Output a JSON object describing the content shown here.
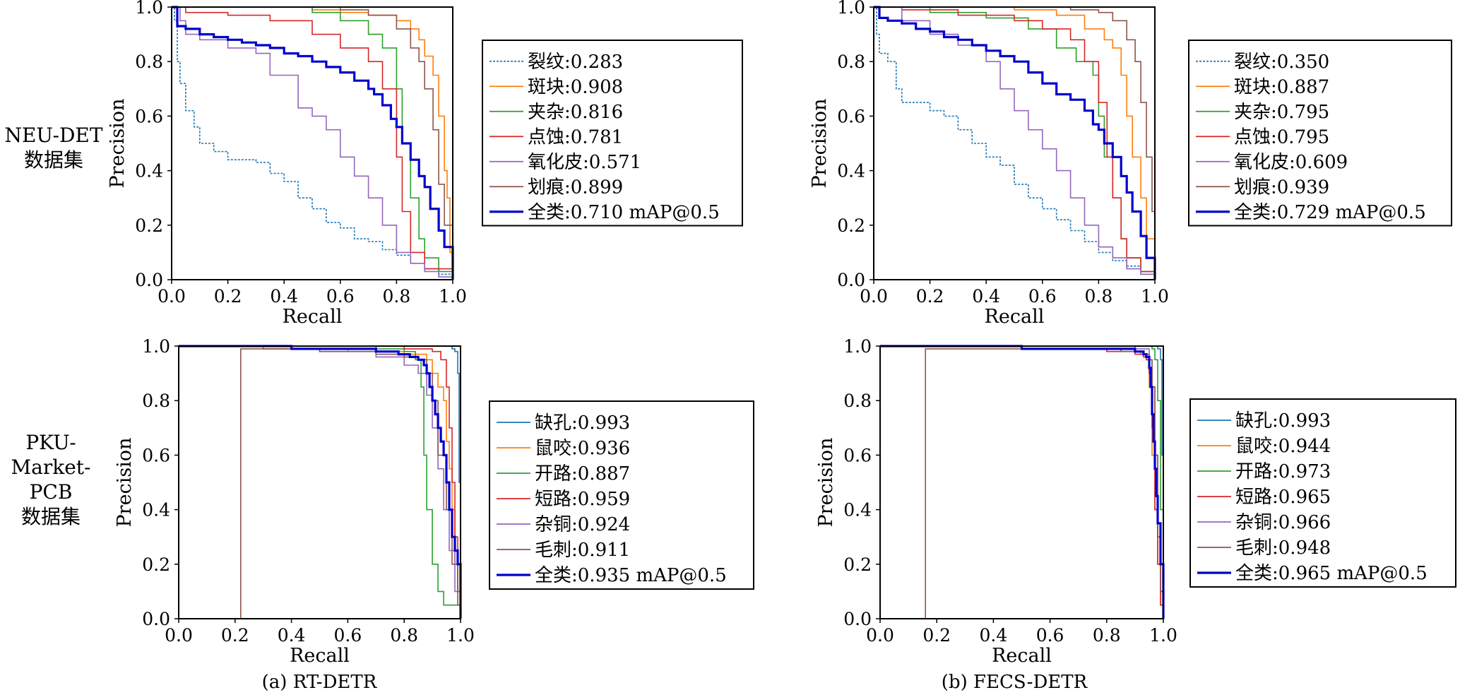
{
  "row_labels": [
    [
      "NEU-DET",
      "数据集"
    ],
    [
      "PKU-",
      "Market-",
      "PCB",
      "数据集"
    ]
  ],
  "captions": [
    "(a) RT-DETR",
    "(b) FECS-DETR"
  ],
  "chart_data": [
    {
      "type": "line",
      "xlabel": "Recall",
      "ylabel": "Precision",
      "xlim": [
        0,
        1
      ],
      "ylim": [
        0,
        1
      ],
      "ticks": [
        "0.0",
        "0.2",
        "0.4",
        "0.6",
        "0.8",
        "1.0"
      ],
      "grid": false,
      "legend": "right",
      "series": [
        {
          "name": "裂纹:0.283",
          "color": "#1f77b4",
          "dashed": true,
          "x": [
            0,
            0.01,
            0.02,
            0.03,
            0.05,
            0.08,
            0.1,
            0.15,
            0.2,
            0.3,
            0.35,
            0.4,
            0.45,
            0.5,
            0.55,
            0.6,
            0.65,
            0.7,
            0.75,
            0.8,
            0.85,
            0.9,
            0.95,
            1.0
          ],
          "y": [
            1.0,
            0.95,
            0.8,
            0.72,
            0.62,
            0.56,
            0.5,
            0.47,
            0.44,
            0.43,
            0.39,
            0.36,
            0.3,
            0.26,
            0.21,
            0.19,
            0.15,
            0.14,
            0.11,
            0.09,
            0.06,
            0.04,
            0.02,
            0.0
          ]
        },
        {
          "name": "斑块:0.908",
          "color": "#ff7f0e",
          "x": [
            0,
            0.25,
            0.5,
            0.6,
            0.7,
            0.8,
            0.85,
            0.88,
            0.9,
            0.93,
            0.95,
            0.97,
            0.98,
            0.99,
            1.0
          ],
          "y": [
            1.0,
            1.0,
            0.99,
            0.98,
            0.97,
            0.95,
            0.92,
            0.88,
            0.82,
            0.75,
            0.6,
            0.4,
            0.3,
            0.1,
            0.0
          ]
        },
        {
          "name": "夹杂:0.816",
          "color": "#2ca02c",
          "x": [
            0,
            0.3,
            0.5,
            0.6,
            0.7,
            0.75,
            0.8,
            0.82,
            0.85,
            0.88,
            0.9,
            0.95,
            1.0
          ],
          "y": [
            1.0,
            1.0,
            0.98,
            0.95,
            0.9,
            0.85,
            0.7,
            0.5,
            0.3,
            0.15,
            0.08,
            0.03,
            0.0
          ]
        },
        {
          "name": "点蚀:0.781",
          "color": "#d62728",
          "x": [
            0,
            0.05,
            0.2,
            0.35,
            0.5,
            0.6,
            0.7,
            0.75,
            0.8,
            0.82,
            0.85,
            0.9,
            1.0
          ],
          "y": [
            1.0,
            0.98,
            0.97,
            0.95,
            0.9,
            0.85,
            0.8,
            0.7,
            0.45,
            0.25,
            0.1,
            0.04,
            0.0
          ]
        },
        {
          "name": "氧化皮:0.571",
          "color": "#9467bd",
          "x": [
            0,
            0.03,
            0.05,
            0.1,
            0.2,
            0.3,
            0.35,
            0.45,
            0.5,
            0.55,
            0.6,
            0.65,
            0.7,
            0.75,
            0.8,
            0.85,
            0.9,
            0.95,
            1.0
          ],
          "y": [
            1.0,
            0.95,
            0.9,
            0.88,
            0.85,
            0.83,
            0.75,
            0.63,
            0.6,
            0.55,
            0.45,
            0.38,
            0.3,
            0.2,
            0.1,
            0.06,
            0.03,
            0.01,
            0.0
          ]
        },
        {
          "name": "划痕:0.899",
          "color": "#8c564b",
          "x": [
            0,
            0.4,
            0.6,
            0.7,
            0.8,
            0.85,
            0.88,
            0.9,
            0.93,
            0.95,
            0.97,
            1.0
          ],
          "y": [
            1.0,
            1.0,
            0.99,
            0.97,
            0.92,
            0.85,
            0.8,
            0.7,
            0.55,
            0.35,
            0.2,
            0.0
          ]
        },
        {
          "name": "全类:0.710 mAP@0.5",
          "color": "#0000cc",
          "bold": true,
          "x": [
            0,
            0.02,
            0.05,
            0.1,
            0.15,
            0.2,
            0.25,
            0.3,
            0.35,
            0.4,
            0.45,
            0.5,
            0.55,
            0.6,
            0.65,
            0.7,
            0.72,
            0.75,
            0.78,
            0.8,
            0.82,
            0.85,
            0.88,
            0.9,
            0.92,
            0.95,
            0.97,
            1.0
          ],
          "y": [
            1.0,
            0.93,
            0.92,
            0.9,
            0.89,
            0.88,
            0.87,
            0.86,
            0.85,
            0.83,
            0.82,
            0.8,
            0.78,
            0.76,
            0.73,
            0.7,
            0.68,
            0.64,
            0.59,
            0.56,
            0.5,
            0.44,
            0.38,
            0.34,
            0.26,
            0.18,
            0.12,
            0.0
          ]
        }
      ]
    },
    {
      "type": "line",
      "xlabel": "Recall",
      "ylabel": "Precision",
      "xlim": [
        0,
        1
      ],
      "ylim": [
        0,
        1
      ],
      "ticks": [
        "0.0",
        "0.2",
        "0.4",
        "0.6",
        "0.8",
        "1.0"
      ],
      "grid": false,
      "legend": "right",
      "series": [
        {
          "name": "裂纹:0.350",
          "color": "#1f77b4",
          "dashed": true,
          "x": [
            0,
            0.01,
            0.02,
            0.05,
            0.08,
            0.1,
            0.15,
            0.2,
            0.25,
            0.3,
            0.35,
            0.4,
            0.45,
            0.5,
            0.55,
            0.6,
            0.65,
            0.7,
            0.75,
            0.8,
            0.85,
            0.9,
            0.95,
            1.0
          ],
          "y": [
            1.0,
            0.9,
            0.83,
            0.8,
            0.7,
            0.65,
            0.65,
            0.62,
            0.6,
            0.55,
            0.5,
            0.45,
            0.42,
            0.35,
            0.3,
            0.26,
            0.22,
            0.18,
            0.14,
            0.1,
            0.07,
            0.05,
            0.02,
            0.0
          ]
        },
        {
          "name": "斑块:0.887",
          "color": "#ff7f0e",
          "x": [
            0,
            0.3,
            0.5,
            0.65,
            0.75,
            0.82,
            0.85,
            0.88,
            0.9,
            0.92,
            0.95,
            0.97,
            1.0
          ],
          "y": [
            1.0,
            1.0,
            0.99,
            0.97,
            0.92,
            0.88,
            0.85,
            0.75,
            0.6,
            0.45,
            0.3,
            0.15,
            0.0
          ]
        },
        {
          "name": "夹杂:0.795",
          "color": "#2ca02c",
          "x": [
            0,
            0.2,
            0.4,
            0.55,
            0.65,
            0.72,
            0.78,
            0.8,
            0.82,
            0.85,
            0.88,
            0.9,
            0.95,
            1.0
          ],
          "y": [
            1.0,
            0.98,
            0.96,
            0.92,
            0.85,
            0.8,
            0.75,
            0.6,
            0.45,
            0.3,
            0.15,
            0.08,
            0.03,
            0.0
          ]
        },
        {
          "name": "点蚀:0.795",
          "color": "#d62728",
          "x": [
            0,
            0.1,
            0.3,
            0.5,
            0.6,
            0.7,
            0.75,
            0.8,
            0.83,
            0.85,
            0.88,
            0.9,
            0.95,
            1.0
          ],
          "y": [
            1.0,
            0.99,
            0.97,
            0.95,
            0.92,
            0.88,
            0.8,
            0.65,
            0.45,
            0.3,
            0.15,
            0.08,
            0.03,
            0.0
          ]
        },
        {
          "name": "氧化皮:0.609",
          "color": "#9467bd",
          "x": [
            0,
            0.1,
            0.2,
            0.3,
            0.4,
            0.45,
            0.5,
            0.55,
            0.6,
            0.65,
            0.7,
            0.75,
            0.8,
            0.85,
            0.9,
            0.95,
            1.0
          ],
          "y": [
            1.0,
            0.95,
            0.9,
            0.86,
            0.8,
            0.7,
            0.62,
            0.55,
            0.48,
            0.4,
            0.3,
            0.2,
            0.12,
            0.08,
            0.04,
            0.02,
            0.0
          ]
        },
        {
          "name": "划痕:0.939",
          "color": "#8c564b",
          "x": [
            0,
            0.5,
            0.7,
            0.8,
            0.85,
            0.9,
            0.93,
            0.95,
            0.97,
            0.99,
            1.0
          ],
          "y": [
            1.0,
            1.0,
            0.99,
            0.98,
            0.95,
            0.88,
            0.8,
            0.65,
            0.45,
            0.25,
            0.0
          ]
        },
        {
          "name": "全类:0.729 mAP@0.5",
          "color": "#0000cc",
          "bold": true,
          "x": [
            0,
            0.02,
            0.05,
            0.1,
            0.15,
            0.2,
            0.25,
            0.3,
            0.35,
            0.4,
            0.45,
            0.5,
            0.55,
            0.6,
            0.65,
            0.7,
            0.75,
            0.78,
            0.8,
            0.82,
            0.85,
            0.88,
            0.9,
            0.92,
            0.95,
            0.97,
            1.0
          ],
          "y": [
            1.0,
            0.96,
            0.95,
            0.94,
            0.92,
            0.91,
            0.89,
            0.88,
            0.86,
            0.84,
            0.82,
            0.8,
            0.76,
            0.72,
            0.68,
            0.66,
            0.62,
            0.57,
            0.55,
            0.5,
            0.45,
            0.38,
            0.32,
            0.25,
            0.16,
            0.08,
            0.0
          ]
        }
      ]
    },
    {
      "type": "line",
      "xlabel": "Recall",
      "ylabel": "Precision",
      "xlim": [
        0,
        1
      ],
      "ylim": [
        0,
        1
      ],
      "ticks": [
        "0.0",
        "0.2",
        "0.4",
        "0.6",
        "0.8",
        "1.0"
      ],
      "grid": false,
      "legend": "right",
      "series": [
        {
          "name": "缺孔:0.993",
          "color": "#1f77b4",
          "x": [
            0,
            0.9,
            0.95,
            0.97,
            0.98,
            0.99,
            0.995,
            1.0
          ],
          "y": [
            1.0,
            1.0,
            1.0,
            0.99,
            0.98,
            0.9,
            0.5,
            0.0
          ]
        },
        {
          "name": "鼠咬:0.936",
          "color": "#ff7f0e",
          "x": [
            0,
            0.3,
            0.6,
            0.8,
            0.88,
            0.9,
            0.92,
            0.94,
            0.95,
            0.96,
            0.97,
            0.98,
            1.0
          ],
          "y": [
            1.0,
            0.99,
            0.98,
            0.97,
            0.95,
            0.9,
            0.85,
            0.8,
            0.65,
            0.55,
            0.4,
            0.2,
            0.0
          ]
        },
        {
          "name": "开路:0.887",
          "color": "#2ca02c",
          "x": [
            0,
            0.4,
            0.7,
            0.8,
            0.84,
            0.86,
            0.87,
            0.88,
            0.9,
            0.92,
            0.94,
            1.0
          ],
          "y": [
            1.0,
            1.0,
            0.99,
            0.98,
            0.95,
            0.85,
            0.6,
            0.4,
            0.2,
            0.1,
            0.05,
            0.0
          ]
        },
        {
          "name": "短路:0.959",
          "color": "#d62728",
          "x": [
            0,
            0.5,
            0.8,
            0.9,
            0.93,
            0.95,
            0.96,
            0.97,
            0.98,
            0.99,
            1.0
          ],
          "y": [
            1.0,
            1.0,
            0.99,
            0.98,
            0.95,
            0.85,
            0.7,
            0.5,
            0.3,
            0.1,
            0.0
          ]
        },
        {
          "name": "杂铜:0.924",
          "color": "#9467bd",
          "x": [
            0,
            0.3,
            0.5,
            0.7,
            0.8,
            0.85,
            0.88,
            0.9,
            0.92,
            0.94,
            0.96,
            0.98,
            1.0
          ],
          "y": [
            1.0,
            0.99,
            0.98,
            0.96,
            0.93,
            0.9,
            0.82,
            0.7,
            0.55,
            0.4,
            0.25,
            0.1,
            0.0
          ]
        },
        {
          "name": "毛刺:0.911",
          "color": "#8c564b",
          "x": [
            0.22,
            0.22,
            0.5,
            0.7,
            0.8,
            0.85,
            0.88,
            0.9,
            0.92,
            0.95,
            0.97,
            0.99,
            1.0
          ],
          "y": [
            0.0,
            0.99,
            0.98,
            0.97,
            0.96,
            0.95,
            0.9,
            0.8,
            0.6,
            0.4,
            0.2,
            0.05,
            0.0
          ]
        },
        {
          "name": "全类:0.935 mAP@0.5",
          "color": "#0000cc",
          "bold": true,
          "x": [
            0,
            0.4,
            0.6,
            0.7,
            0.78,
            0.82,
            0.85,
            0.87,
            0.88,
            0.89,
            0.9,
            0.91,
            0.92,
            0.93,
            0.94,
            0.95,
            0.96,
            0.97,
            0.98,
            0.99,
            1.0
          ],
          "y": [
            1.0,
            0.99,
            0.99,
            0.98,
            0.97,
            0.96,
            0.95,
            0.93,
            0.9,
            0.85,
            0.8,
            0.75,
            0.7,
            0.65,
            0.6,
            0.5,
            0.4,
            0.3,
            0.25,
            0.2,
            0.0
          ]
        }
      ]
    },
    {
      "type": "line",
      "xlabel": "Recall",
      "ylabel": "Precision",
      "xlim": [
        0,
        1
      ],
      "ylim": [
        0,
        1
      ],
      "ticks": [
        "0.0",
        "0.2",
        "0.4",
        "0.6",
        "0.8",
        "1.0"
      ],
      "grid": false,
      "legend": "right",
      "series": [
        {
          "name": "缺孔:0.993",
          "color": "#1f77b4",
          "x": [
            0,
            0.95,
            0.98,
            0.99,
            0.995,
            1.0
          ],
          "y": [
            1.0,
            1.0,
            0.99,
            0.95,
            0.6,
            0.0
          ]
        },
        {
          "name": "鼠咬:0.944",
          "color": "#ff7f0e",
          "x": [
            0,
            0.5,
            0.85,
            0.92,
            0.94,
            0.95,
            0.96,
            0.97,
            0.98,
            0.99,
            1.0
          ],
          "y": [
            1.0,
            0.99,
            0.98,
            0.97,
            0.95,
            0.85,
            0.6,
            0.4,
            0.2,
            0.05,
            0.0
          ]
        },
        {
          "name": "开路:0.973",
          "color": "#2ca02c",
          "x": [
            0,
            0.9,
            0.96,
            0.97,
            0.98,
            0.99,
            1.0
          ],
          "y": [
            1.0,
            1.0,
            0.99,
            0.95,
            0.8,
            0.4,
            0.0
          ]
        },
        {
          "name": "短路:0.965",
          "color": "#d62728",
          "x": [
            0,
            0.5,
            0.8,
            0.9,
            0.93,
            0.94,
            0.95,
            0.96,
            0.97,
            0.98,
            0.99,
            1.0
          ],
          "y": [
            1.0,
            0.99,
            0.98,
            0.97,
            0.96,
            0.95,
            0.9,
            0.7,
            0.4,
            0.2,
            0.05,
            0.0
          ]
        },
        {
          "name": "杂铜:0.966",
          "color": "#9467bd",
          "x": [
            0,
            0.6,
            0.9,
            0.95,
            0.96,
            0.97,
            0.98,
            0.99,
            1.0
          ],
          "y": [
            1.0,
            1.0,
            0.99,
            0.95,
            0.85,
            0.6,
            0.3,
            0.1,
            0.0
          ]
        },
        {
          "name": "毛刺:0.948",
          "color": "#8c564b",
          "x": [
            0.16,
            0.16,
            0.5,
            0.85,
            0.93,
            0.95,
            0.96,
            0.97,
            0.98,
            0.99,
            1.0
          ],
          "y": [
            0.0,
            0.99,
            0.99,
            0.98,
            0.97,
            0.95,
            0.85,
            0.6,
            0.3,
            0.1,
            0.0
          ]
        },
        {
          "name": "全类:0.965 mAP@0.5",
          "color": "#0000cc",
          "bold": true,
          "x": [
            0,
            0.5,
            0.8,
            0.9,
            0.93,
            0.94,
            0.95,
            0.955,
            0.96,
            0.965,
            0.97,
            0.975,
            0.98,
            0.99,
            1.0
          ],
          "y": [
            1.0,
            0.99,
            0.99,
            0.98,
            0.97,
            0.96,
            0.92,
            0.85,
            0.75,
            0.65,
            0.55,
            0.45,
            0.35,
            0.2,
            0.0
          ]
        }
      ]
    }
  ]
}
